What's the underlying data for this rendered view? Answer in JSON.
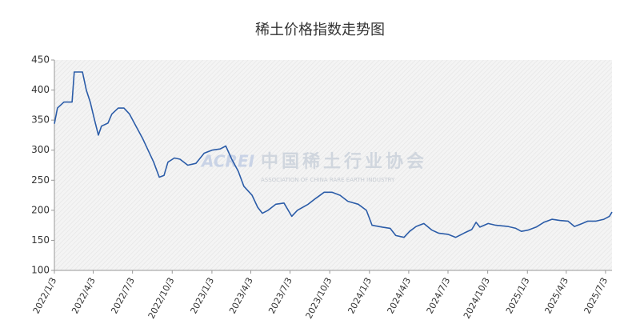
{
  "chart_data": {
    "type": "line",
    "title": "稀土价格指数走势图",
    "watermark": {
      "logo": "ACREI",
      "text": "中国稀土行业协会",
      "subtext": "ASSOCIATION OF CHINA RARE EARTH INDUSTRY"
    },
    "x": [
      "2022/1/3",
      "2022/1/10",
      "2022/1/25",
      "2022/2/13",
      "2022/2/18",
      "2022/3/9",
      "2022/3/18",
      "2022/3/27",
      "2022/4/6",
      "2022/4/15",
      "2022/4/22",
      "2022/5/7",
      "2022/5/16",
      "2022/5/31",
      "2022/6/13",
      "2022/6/26",
      "2022/7/11",
      "2022/7/26",
      "2022/8/8",
      "2022/8/21",
      "2022/9/3",
      "2022/9/14",
      "2022/9/23",
      "2022/10/8",
      "2022/10/21",
      "2022/11/8",
      "2022/11/27",
      "2022/12/16",
      "2023/1/3",
      "2023/1/22",
      "2023/2/4",
      "2023/2/18",
      "2023/3/5",
      "2023/3/18",
      "2023/4/6",
      "2023/4/19",
      "2023/4/30",
      "2023/5/13",
      "2023/5/31",
      "2023/6/19",
      "2023/7/7",
      "2023/7/20",
      "2023/8/14",
      "2023/9/1",
      "2023/9/20",
      "2023/10/8",
      "2023/10/27",
      "2023/11/14",
      "2023/12/8",
      "2023/12/27",
      "2024/1/9",
      "2024/2/2",
      "2024/2/20",
      "2024/3/4",
      "2024/3/23",
      "2024/4/5",
      "2024/4/20",
      "2024/5/8",
      "2024/5/27",
      "2024/6/11",
      "2024/7/3",
      "2024/7/21",
      "2024/8/9",
      "2024/8/27",
      "2024/9/6",
      "2024/9/15",
      "2024/10/4",
      "2024/10/22",
      "2024/11/19",
      "2024/12/7",
      "2024/12/20",
      "2025/1/4",
      "2025/1/23",
      "2025/2/10",
      "2025/3/1",
      "2025/3/19",
      "2025/4/7",
      "2025/4/22",
      "2025/5/10",
      "2025/5/23",
      "2025/6/11",
      "2025/6/29",
      "2025/7/12",
      "2025/7/18"
    ],
    "series": [
      {
        "color": "#2b5ca8",
        "values": [
          344,
          370,
          380,
          380,
          430,
          430,
          400,
          380,
          350,
          325,
          340,
          345,
          360,
          370,
          370,
          360,
          340,
          320,
          300,
          280,
          255,
          258,
          280,
          287,
          285,
          275,
          278,
          295,
          300,
          302,
          307,
          285,
          265,
          240,
          225,
          205,
          195,
          200,
          210,
          212,
          190,
          200,
          210,
          220,
          230,
          230,
          225,
          215,
          210,
          200,
          175,
          172,
          170,
          158,
          155,
          165,
          173,
          178,
          167,
          162,
          160,
          155,
          162,
          168,
          180,
          172,
          178,
          175,
          173,
          170,
          165,
          167,
          172,
          180,
          185,
          183,
          182,
          173,
          178,
          182,
          182,
          185,
          190,
          197
        ]
      }
    ],
    "xlim": [
      "2022/1/3",
      "2025/7/18"
    ],
    "xticks": [
      "2022/1/3",
      "2022/4/3",
      "2022/7/3",
      "2022/10/3",
      "2023/1/3",
      "2023/4/3",
      "2023/7/3",
      "2023/10/3",
      "2024/1/3",
      "2024/4/3",
      "2024/7/3",
      "2024/10/3",
      "2025/1/3",
      "2025/4/3",
      "2025/7/3"
    ],
    "ylim": [
      100,
      450
    ],
    "yticks": [
      100,
      150,
      200,
      250,
      300,
      350,
      400,
      450
    ],
    "grid": false
  }
}
